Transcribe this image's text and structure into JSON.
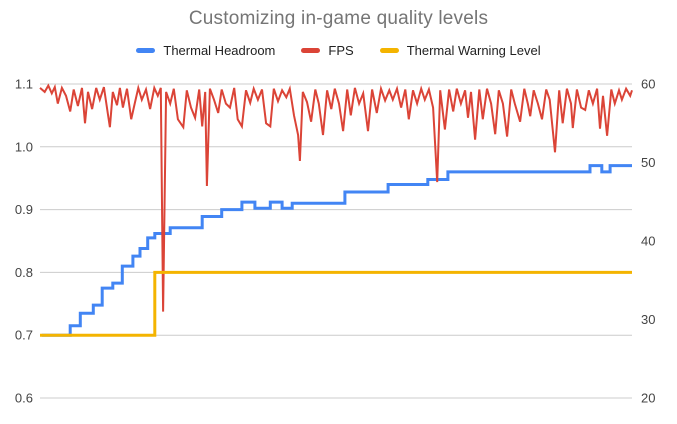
{
  "title": "Customizing in-game quality levels",
  "legend": {
    "items": [
      {
        "label": "Thermal Headroom",
        "color": "#4285F4"
      },
      {
        "label": "FPS",
        "color": "#DB4437"
      },
      {
        "label": "Thermal Warning Level",
        "color": "#F4B400"
      }
    ]
  },
  "colors": {
    "background": "#FFFFFF",
    "title_text": "#757575",
    "legend_text": "#222222",
    "axis_label_text": "#444444",
    "gridline": "#CCCCCC",
    "series_blue": "#4285F4",
    "series_red": "#DB4437",
    "series_yellow": "#F4B400"
  },
  "chart_data": {
    "type": "line",
    "title": "Customizing in-game quality levels",
    "grid": true,
    "legend_position": "top",
    "x_axis": {
      "labels_visible": false,
      "domain": [
        0,
        100
      ]
    },
    "left_axis": {
      "range": [
        0.6,
        1.1
      ],
      "tick_values": [
        1.1,
        1.0,
        0.9,
        0.8,
        0.7,
        0.6
      ],
      "ticks": [
        "1.1",
        "1.0",
        "0.9",
        "0.8",
        "0.7",
        "0.6"
      ]
    },
    "right_axis": {
      "range": [
        20,
        60
      ],
      "tick_values": [
        60,
        50,
        40,
        30,
        20
      ],
      "ticks": [
        "60",
        "50",
        "40",
        "30",
        "20"
      ]
    },
    "series": [
      {
        "name": "Thermal Headroom",
        "axis": "left",
        "color": "#4285F4",
        "style": "step",
        "width": 3,
        "points": [
          [
            0.3,
            0.7
          ],
          [
            5.1,
            0.715
          ],
          [
            6.8,
            0.735
          ],
          [
            9.0,
            0.748
          ],
          [
            10.5,
            0.775
          ],
          [
            12.3,
            0.783
          ],
          [
            13.9,
            0.81
          ],
          [
            15.7,
            0.826
          ],
          [
            16.9,
            0.838
          ],
          [
            18.2,
            0.855
          ],
          [
            19.4,
            0.862
          ],
          [
            22.0,
            0.871
          ],
          [
            27.4,
            0.889
          ],
          [
            30.7,
            0.9
          ],
          [
            34.1,
            0.912
          ],
          [
            36.3,
            0.902
          ],
          [
            38.9,
            0.912
          ],
          [
            40.9,
            0.902
          ],
          [
            42.6,
            0.91
          ],
          [
            51.5,
            0.928
          ],
          [
            58.8,
            0.94
          ],
          [
            65.5,
            0.948
          ],
          [
            68.9,
            0.96
          ],
          [
            92.9,
            0.97
          ],
          [
            94.9,
            0.96
          ],
          [
            96.3,
            0.97
          ]
        ]
      },
      {
        "name": "FPS",
        "axis": "right",
        "color": "#DB4437",
        "style": "line",
        "width": 2,
        "points": [
          [
            0,
            59.5
          ],
          [
            0.8,
            59
          ],
          [
            1.4,
            59.8
          ],
          [
            2,
            58.8
          ],
          [
            2.5,
            59.6
          ],
          [
            3,
            57.5
          ],
          [
            3.7,
            59.5
          ],
          [
            4.4,
            58.5
          ],
          [
            5.1,
            56.5
          ],
          [
            5.7,
            59.3
          ],
          [
            6.4,
            57.2
          ],
          [
            7.1,
            59.5
          ],
          [
            7.6,
            55
          ],
          [
            8.1,
            59
          ],
          [
            8.8,
            56.8
          ],
          [
            9.5,
            59.5
          ],
          [
            10.1,
            58
          ],
          [
            10.8,
            59.6
          ],
          [
            11.5,
            56
          ],
          [
            11.8,
            54.5
          ],
          [
            12.3,
            59
          ],
          [
            13,
            57.3
          ],
          [
            13.5,
            59.5
          ],
          [
            14,
            57
          ],
          [
            14.7,
            59.4
          ],
          [
            15.4,
            55.5
          ],
          [
            16,
            57.5
          ],
          [
            16.6,
            59.5
          ],
          [
            17.2,
            58
          ],
          [
            17.9,
            59.3
          ],
          [
            18.6,
            56.8
          ],
          [
            19.3,
            59.5
          ],
          [
            19.9,
            58.5
          ],
          [
            20.4,
            59.5
          ],
          [
            20.8,
            31
          ],
          [
            21.3,
            59
          ],
          [
            22,
            57.5
          ],
          [
            22.6,
            59.4
          ],
          [
            23.3,
            55.5
          ],
          [
            24.2,
            54.5
          ],
          [
            24.8,
            59.2
          ],
          [
            25.5,
            57
          ],
          [
            26.2,
            55.7
          ],
          [
            26.9,
            59.3
          ],
          [
            27.4,
            54.6
          ],
          [
            27.9,
            59
          ],
          [
            28.2,
            47
          ],
          [
            28.7,
            59.4
          ],
          [
            29.4,
            58
          ],
          [
            30.1,
            56.3
          ],
          [
            30.7,
            59.3
          ],
          [
            31.4,
            57.5
          ],
          [
            32.1,
            57
          ],
          [
            32.8,
            59.5
          ],
          [
            33.4,
            55.5
          ],
          [
            34.1,
            54.6
          ],
          [
            34.8,
            59.2
          ],
          [
            35.5,
            57.6
          ],
          [
            36.1,
            59.4
          ],
          [
            36.8,
            58
          ],
          [
            37.5,
            59.3
          ],
          [
            38.2,
            55
          ],
          [
            38.9,
            54.6
          ],
          [
            39.5,
            59.4
          ],
          [
            40.2,
            57.8
          ],
          [
            40.9,
            59.2
          ],
          [
            41.6,
            58.3
          ],
          [
            42.2,
            59.4
          ],
          [
            42.9,
            56
          ],
          [
            43.6,
            53.5
          ],
          [
            43.9,
            50.2
          ],
          [
            44.4,
            59
          ],
          [
            45.1,
            57.7
          ],
          [
            45.8,
            55.2
          ],
          [
            46.5,
            59.3
          ],
          [
            47.1,
            57.5
          ],
          [
            47.8,
            53.5
          ],
          [
            48.5,
            59.2
          ],
          [
            49.2,
            56.8
          ],
          [
            49.8,
            59.4
          ],
          [
            50.5,
            57.5
          ],
          [
            51.2,
            54
          ],
          [
            51.9,
            59.3
          ],
          [
            52.5,
            56
          ],
          [
            53.2,
            59.5
          ],
          [
            53.9,
            57.5
          ],
          [
            54.6,
            58.8
          ],
          [
            55.4,
            54
          ],
          [
            56.1,
            59.3
          ],
          [
            56.9,
            56.3
          ],
          [
            57.6,
            59.4
          ],
          [
            58.3,
            57.9
          ],
          [
            59,
            59.2
          ],
          [
            59.6,
            58
          ],
          [
            60.3,
            59.4
          ],
          [
            61,
            57
          ],
          [
            61.7,
            59.3
          ],
          [
            62.3,
            55.5
          ],
          [
            63,
            59.2
          ],
          [
            63.7,
            57.5
          ],
          [
            64.4,
            59.4
          ],
          [
            65,
            58
          ],
          [
            65.7,
            59.3
          ],
          [
            66.4,
            57
          ],
          [
            67.1,
            47.5
          ],
          [
            67.6,
            59.2
          ],
          [
            68.4,
            54.2
          ],
          [
            69.1,
            59.3
          ],
          [
            69.8,
            56.5
          ],
          [
            70.4,
            59.4
          ],
          [
            71.1,
            57.5
          ],
          [
            71.8,
            59.2
          ],
          [
            72.3,
            55.7
          ],
          [
            72.8,
            59
          ],
          [
            73.5,
            52.9
          ],
          [
            74.2,
            59.3
          ],
          [
            74.8,
            55.5
          ],
          [
            75.5,
            59.4
          ],
          [
            76.2,
            57.5
          ],
          [
            76.9,
            53.6
          ],
          [
            77.5,
            59.2
          ],
          [
            78.2,
            57.5
          ],
          [
            78.9,
            53.3
          ],
          [
            79.6,
            59.3
          ],
          [
            80.2,
            57.5
          ],
          [
            81.1,
            55.2
          ],
          [
            81.8,
            59.4
          ],
          [
            82.4,
            57.5
          ],
          [
            82.8,
            55.9
          ],
          [
            83.4,
            59.2
          ],
          [
            84.1,
            57.5
          ],
          [
            84.8,
            55.5
          ],
          [
            85.5,
            59.3
          ],
          [
            86.1,
            58
          ],
          [
            87,
            51.3
          ],
          [
            87.7,
            59.2
          ],
          [
            88.3,
            55
          ],
          [
            89,
            59.4
          ],
          [
            89.7,
            57.5
          ],
          [
            90,
            54.4
          ],
          [
            90.7,
            59.3
          ],
          [
            91.4,
            57
          ],
          [
            92.1,
            56.7
          ],
          [
            92.7,
            59.2
          ],
          [
            93.4,
            57.5
          ],
          [
            94.1,
            59.4
          ],
          [
            94.6,
            54.3
          ],
          [
            95.1,
            58.5
          ],
          [
            95.8,
            53.4
          ],
          [
            96.5,
            59.3
          ],
          [
            97.1,
            57.5
          ],
          [
            97.8,
            59.2
          ],
          [
            98.3,
            58
          ],
          [
            99,
            59.4
          ],
          [
            99.7,
            58.5
          ],
          [
            100,
            59.2
          ]
        ]
      },
      {
        "name": "Thermal Warning Level",
        "axis": "left",
        "color": "#F4B400",
        "style": "step",
        "width": 3,
        "points": [
          [
            0,
            0.7
          ],
          [
            19.4,
            0.8
          ]
        ]
      }
    ]
  }
}
